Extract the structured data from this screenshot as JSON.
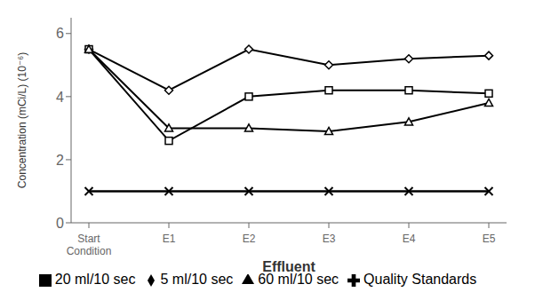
{
  "chart_data": {
    "type": "line",
    "categories": [
      "Start\nCondition",
      "E1",
      "E2",
      "E3",
      "E4",
      "E5"
    ],
    "series": [
      {
        "name": "5 ml/10 sec",
        "color": "#000000",
        "marker": "diamond",
        "values": [
          5.5,
          4.2,
          5.5,
          5.0,
          5.2,
          5.3
        ]
      },
      {
        "name": "20 ml/10 sec",
        "color": "#000000",
        "marker": "square",
        "values": [
          5.5,
          2.6,
          4.0,
          4.2,
          4.2,
          4.1
        ]
      },
      {
        "name": "60 ml/10 sec",
        "color": "#000000",
        "marker": "triangle",
        "values": [
          5.5,
          3.0,
          3.0,
          2.9,
          3.2,
          3.8
        ]
      },
      {
        "name": "Quality Standards",
        "color": "#000000",
        "marker": "x",
        "values": [
          1.0,
          1.0,
          1.0,
          1.0,
          1.0,
          1.0
        ]
      }
    ],
    "xlabel": "Effluent",
    "ylabel": "Concentration (mCi/L) (10⁻⁶)",
    "ylim": [
      0,
      6.5
    ],
    "yticks": [
      0,
      2,
      4,
      6
    ],
    "grid": false,
    "legend": "bottom"
  }
}
